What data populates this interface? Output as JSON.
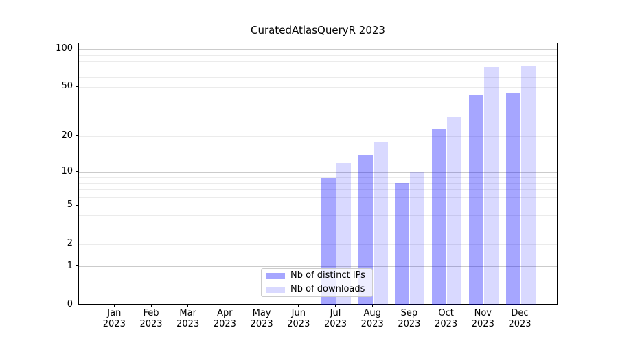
{
  "figure": {
    "background": "#ffffff"
  },
  "chart_data": {
    "type": "bar",
    "title": "CuratedAtlasQueryR 2023",
    "x_months": [
      "Jan",
      "Feb",
      "Mar",
      "Apr",
      "May",
      "Jun",
      "Jul",
      "Aug",
      "Sep",
      "Oct",
      "Nov",
      "Dec"
    ],
    "x_year": "2023",
    "series": [
      {
        "name": "Nb of distinct IPs",
        "color": "rgba(0,0,255,0.35)",
        "values": [
          0,
          0,
          0,
          0,
          0,
          0,
          9,
          14,
          8,
          23,
          43,
          45
        ]
      },
      {
        "name": "Nb of downloads",
        "color": "rgba(0,0,255,0.15)",
        "values": [
          0,
          0,
          0,
          0,
          0,
          0,
          12,
          18,
          10,
          29,
          72,
          74
        ]
      }
    ],
    "yscale": "log1p",
    "ylim": [
      0,
      112
    ],
    "ytick_labels": [
      0,
      1,
      2,
      5,
      10,
      20,
      50,
      100
    ],
    "gridlines": {
      "major": [
        1,
        10,
        100
      ],
      "minor": [
        2,
        3,
        4,
        5,
        6,
        7,
        8,
        9,
        20,
        30,
        40,
        50,
        60,
        70,
        80,
        90
      ],
      "major_color": "#cbcbcb",
      "minor_color": "#ebebeb"
    },
    "legend": {
      "position": "lower center"
    },
    "axis_color": "#000000"
  }
}
